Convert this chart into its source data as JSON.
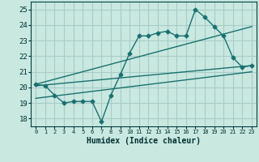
{
  "xlabel": "Humidex (Indice chaleur)",
  "ylabel": "",
  "xlim": [
    -0.5,
    23.5
  ],
  "ylim": [
    17.5,
    25.5
  ],
  "yticks": [
    18,
    19,
    20,
    21,
    22,
    23,
    24,
    25
  ],
  "xticks": [
    0,
    1,
    2,
    3,
    4,
    5,
    6,
    7,
    8,
    9,
    10,
    11,
    12,
    13,
    14,
    15,
    16,
    17,
    18,
    19,
    20,
    21,
    22,
    23
  ],
  "bg_color": "#c8e8e0",
  "grid_color": "#a8ccc8",
  "line_color": "#1a7070",
  "main_x": [
    0,
    1,
    2,
    3,
    4,
    5,
    6,
    7,
    8,
    9,
    10,
    11,
    12,
    13,
    14,
    15,
    16,
    17,
    18,
    19,
    20,
    21,
    22,
    23
  ],
  "main_y": [
    20.2,
    20.1,
    19.5,
    19.0,
    19.1,
    19.1,
    19.1,
    17.8,
    19.5,
    20.8,
    22.2,
    23.3,
    23.3,
    23.5,
    23.6,
    23.3,
    23.3,
    25.0,
    24.5,
    23.9,
    23.3,
    21.9,
    21.3,
    21.4
  ],
  "trend1_x": [
    0,
    23
  ],
  "trend1_y": [
    20.2,
    23.9
  ],
  "trend2_x": [
    0,
    23
  ],
  "trend2_y": [
    19.3,
    21.0
  ],
  "trend3_x": [
    0,
    23
  ],
  "trend3_y": [
    20.1,
    21.4
  ]
}
